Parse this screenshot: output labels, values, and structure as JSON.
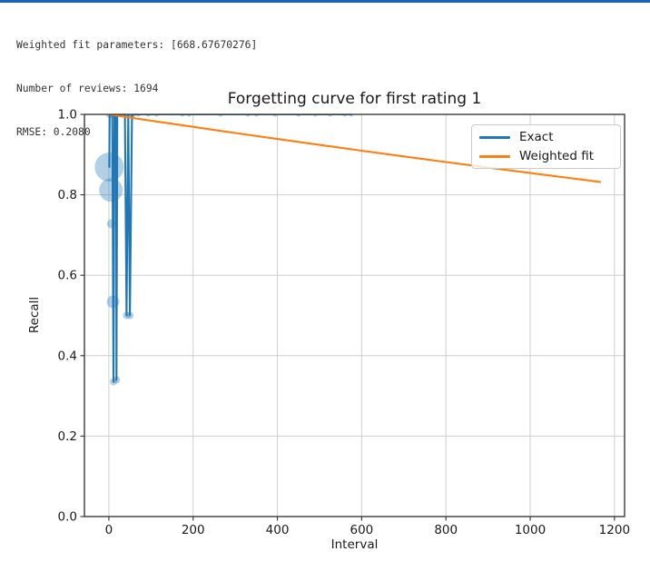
{
  "page": {
    "top_border_color": "#1565c0",
    "background": "#ffffff"
  },
  "console": {
    "lines": [
      "Weighted fit parameters: [668.67670276]",
      "Number of reviews: 1694",
      "RMSE: 0.2080"
    ]
  },
  "chart_data": {
    "type": "line+scatter",
    "title": "Forgetting curve for first rating 1",
    "xlabel": "Interval",
    "ylabel": "Recall",
    "xlim": [
      -58,
      1224
    ],
    "ylim": [
      0,
      1
    ],
    "xticks": [
      0,
      200,
      400,
      600,
      800,
      1000,
      1200
    ],
    "yticks": [
      0.0,
      0.2,
      0.4,
      0.6,
      0.8,
      1.0
    ],
    "grid": true,
    "grid_color": "#cfcfcf",
    "legend": {
      "position": "upper right",
      "entries": [
        {
          "label": "Exact",
          "color": "#1f77b4"
        },
        {
          "label": "Weighted fit",
          "color": "#ff7f0e"
        }
      ]
    },
    "series": [
      {
        "name": "Exact",
        "type": "line",
        "color": "#1f77b4",
        "points": [
          [
            1,
            0.869
          ],
          [
            2,
            1.0
          ],
          [
            8,
            1.0
          ],
          [
            9,
            0.812
          ],
          [
            10,
            0.534
          ],
          [
            11,
            0.335
          ],
          [
            13,
            1.0
          ],
          [
            17,
            1.0
          ],
          [
            18,
            0.34
          ],
          [
            20,
            1.0
          ],
          [
            38,
            1.0
          ],
          [
            42,
            0.5
          ],
          [
            46,
            1.0
          ],
          [
            50,
            0.5
          ],
          [
            55,
            1.0
          ],
          [
            58,
            1.0
          ],
          [
            70,
            1.0
          ],
          [
            94,
            1.0
          ],
          [
            113,
            1.0
          ],
          [
            175,
            1.0
          ],
          [
            190,
            1.0
          ],
          [
            265,
            1.0
          ],
          [
            330,
            1.0
          ],
          [
            350,
            1.0
          ],
          [
            394,
            1.0
          ],
          [
            450,
            1.0
          ],
          [
            490,
            1.0
          ],
          [
            525,
            1.0
          ],
          [
            560,
            1.0
          ],
          [
            575,
            1.0
          ]
        ]
      },
      {
        "name": "Weighted fit",
        "type": "line",
        "color": "#ff7f0e",
        "points": [
          [
            0,
            1.0
          ],
          [
            50,
            0.99215
          ],
          [
            100,
            0.98437
          ],
          [
            200,
            0.96898
          ],
          [
            300,
            0.95383
          ],
          [
            400,
            0.93891
          ],
          [
            500,
            0.92423
          ],
          [
            600,
            0.90977
          ],
          [
            700,
            0.89554
          ],
          [
            800,
            0.88154
          ],
          [
            900,
            0.86775
          ],
          [
            1000,
            0.85418
          ],
          [
            1100,
            0.84082
          ],
          [
            1166,
            0.83216
          ]
        ]
      },
      {
        "name": "Exact weights",
        "type": "scatter",
        "color": "#1f77b4",
        "alpha": 0.35,
        "points_trs": [
          [
            1,
            0.869,
            16
          ],
          [
            5,
            0.812,
            13
          ],
          [
            6,
            0.728,
            5
          ],
          [
            10,
            0.534,
            7
          ],
          [
            11,
            0.335,
            4
          ],
          [
            18,
            0.34,
            4
          ],
          [
            42,
            0.5,
            4
          ],
          [
            50,
            0.5,
            4
          ],
          [
            2,
            1,
            4
          ],
          [
            8,
            1,
            3.5
          ],
          [
            13,
            1,
            3.5
          ],
          [
            17,
            1,
            3
          ],
          [
            20,
            1,
            3
          ],
          [
            38,
            1,
            3
          ],
          [
            46,
            1,
            3
          ],
          [
            55,
            1,
            3
          ],
          [
            58,
            1,
            3
          ],
          [
            70,
            1,
            2.5
          ],
          [
            94,
            1,
            2.5
          ],
          [
            113,
            1,
            2.5
          ],
          [
            175,
            1,
            2.5
          ],
          [
            190,
            1,
            2.5
          ],
          [
            265,
            1,
            2.5
          ],
          [
            330,
            1,
            2.5
          ],
          [
            350,
            1,
            2.5
          ],
          [
            394,
            1,
            2.5
          ],
          [
            450,
            1,
            2.5
          ],
          [
            490,
            1,
            2.5
          ],
          [
            525,
            1,
            2.5
          ],
          [
            560,
            1,
            2.5
          ],
          [
            575,
            1,
            2.5
          ]
        ]
      }
    ]
  }
}
